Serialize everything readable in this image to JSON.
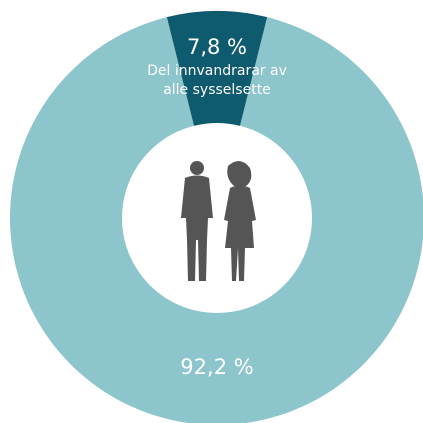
{
  "chart_data": {
    "type": "donut",
    "categories": [
      "Del innvandrarar av alle sysselsette",
      null
    ],
    "values": [
      7.8,
      92.2
    ],
    "value_labels": [
      "7,8 %",
      "92,2 %"
    ],
    "colors": [
      "#0e5a6e",
      "#8cc5cb"
    ]
  }
}
